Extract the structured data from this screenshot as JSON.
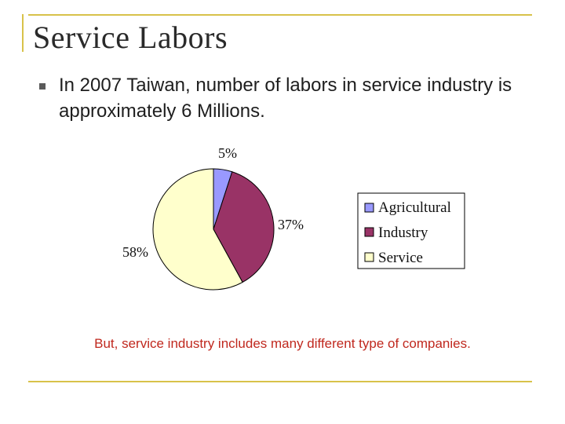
{
  "slide": {
    "title": "Service Labors",
    "bullet": "In 2007 Taiwan, number of labors in service industry is approximately 6 Millions.",
    "footnote": "But, service industry includes many different type of companies."
  },
  "chart_data": {
    "type": "pie",
    "categories": [
      "Agricultural",
      "Industry",
      "Service"
    ],
    "values": [
      5,
      37,
      58
    ],
    "data_labels": [
      "5%",
      "37%",
      "58%"
    ],
    "colors": [
      "#9999ff",
      "#993366",
      "#ffffcc"
    ],
    "start": "12 o'clock",
    "direction": "clockwise",
    "legend_position": "right"
  }
}
